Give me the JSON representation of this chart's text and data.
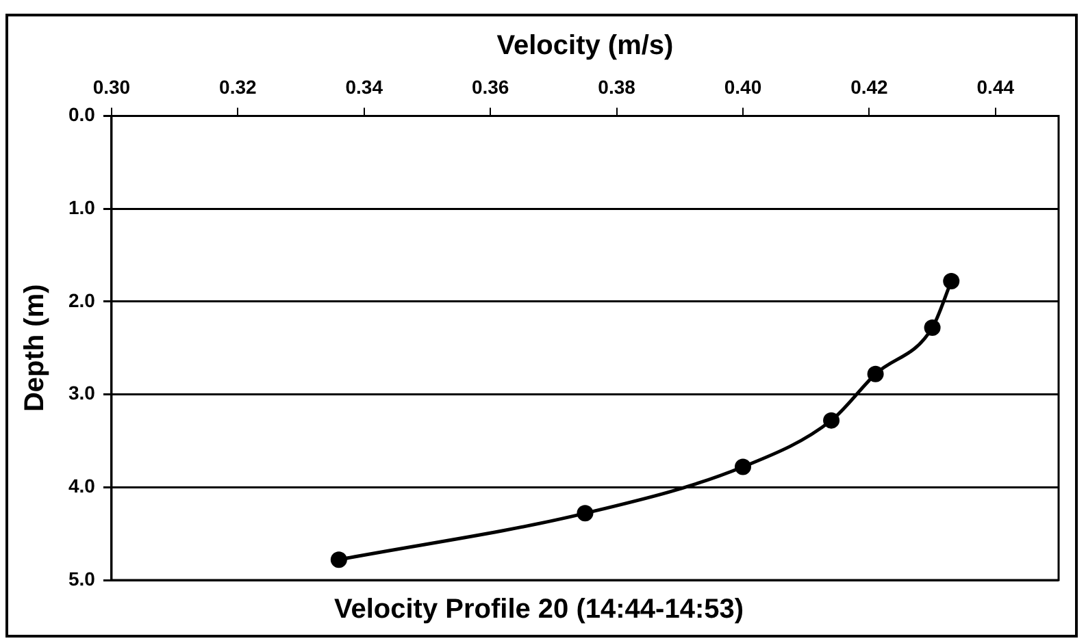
{
  "chart_data": {
    "type": "line",
    "title": "Velocity Profile 20 (14:44-14:53)",
    "xlabel": "Velocity (m/s)",
    "ylabel": "Depth (m)",
    "x": [
      0.336,
      0.375,
      0.4,
      0.414,
      0.421,
      0.43,
      0.433
    ],
    "series": [
      {
        "color": "#000000",
        "values": [
          4.78,
          4.28,
          3.78,
          3.28,
          2.78,
          2.28,
          1.78
        ]
      }
    ],
    "xlim": [
      0.3,
      0.45
    ],
    "xticks": [
      {
        "value": 0.3,
        "label": "0.30"
      },
      {
        "value": 0.32,
        "label": "0.32"
      },
      {
        "value": 0.34,
        "label": "0.34"
      },
      {
        "value": 0.36,
        "label": "0.36"
      },
      {
        "value": 0.38,
        "label": "0.38"
      },
      {
        "value": 0.4,
        "label": "0.40"
      },
      {
        "value": 0.42,
        "label": "0.42"
      },
      {
        "value": 0.44,
        "label": "0.44"
      }
    ],
    "ylim": [
      5,
      0
    ],
    "yticks": [
      {
        "value": 0,
        "label": "0.0"
      },
      {
        "value": 1,
        "label": "1.0"
      },
      {
        "value": 2,
        "label": "2.0"
      },
      {
        "value": 3,
        "label": "3.0"
      },
      {
        "value": 4,
        "label": "4.0"
      },
      {
        "value": 5,
        "label": "5.0"
      }
    ],
    "grid": "y",
    "legend": false,
    "marker": "circle",
    "line_style": "solid"
  }
}
